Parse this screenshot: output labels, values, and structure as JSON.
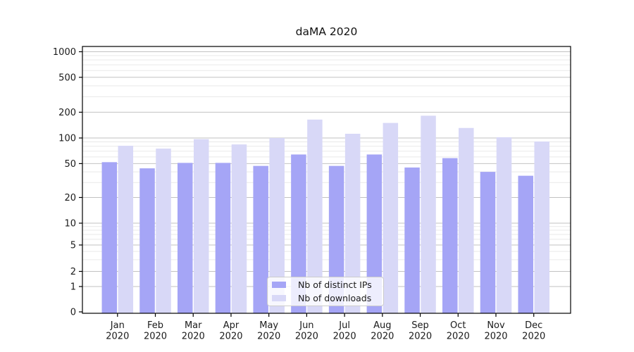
{
  "chart_data": {
    "type": "bar",
    "title": "daMA 2020",
    "categories": [
      "Jan",
      "Feb",
      "Mar",
      "Apr",
      "May",
      "Jun",
      "Jul",
      "Aug",
      "Sep",
      "Oct",
      "Nov",
      "Dec"
    ],
    "category_year": "2020",
    "series": [
      {
        "name": "Nb of distinct IPs",
        "color": "#a5a5f6",
        "values": [
          52,
          44,
          51,
          51,
          47,
          64,
          47,
          64,
          45,
          58,
          40,
          36
        ]
      },
      {
        "name": "Nb of downloads",
        "color": "#d8d8f7",
        "values": [
          81,
          75,
          97,
          84,
          100,
          164,
          112,
          150,
          182,
          131,
          102,
          91
        ]
      }
    ],
    "xlabel": "",
    "ylabel": "",
    "yscale": "symlog",
    "ylim": [
      0,
      1150
    ],
    "yticks": [
      0,
      1,
      2,
      5,
      10,
      20,
      50,
      100,
      200,
      500,
      1000
    ],
    "yticks_minor": [
      3,
      4,
      6,
      7,
      8,
      9,
      30,
      40,
      60,
      70,
      80,
      90,
      300,
      400,
      600,
      700,
      800,
      900
    ],
    "grid": "horizontal major+minor",
    "legend_position": "lower center",
    "colors": {
      "grid_major": "#c2c2c2",
      "grid_minor": "#e9e9e9",
      "spine": "#000000",
      "tick_text": "#1a1a1a",
      "background": "#ffffff"
    }
  }
}
